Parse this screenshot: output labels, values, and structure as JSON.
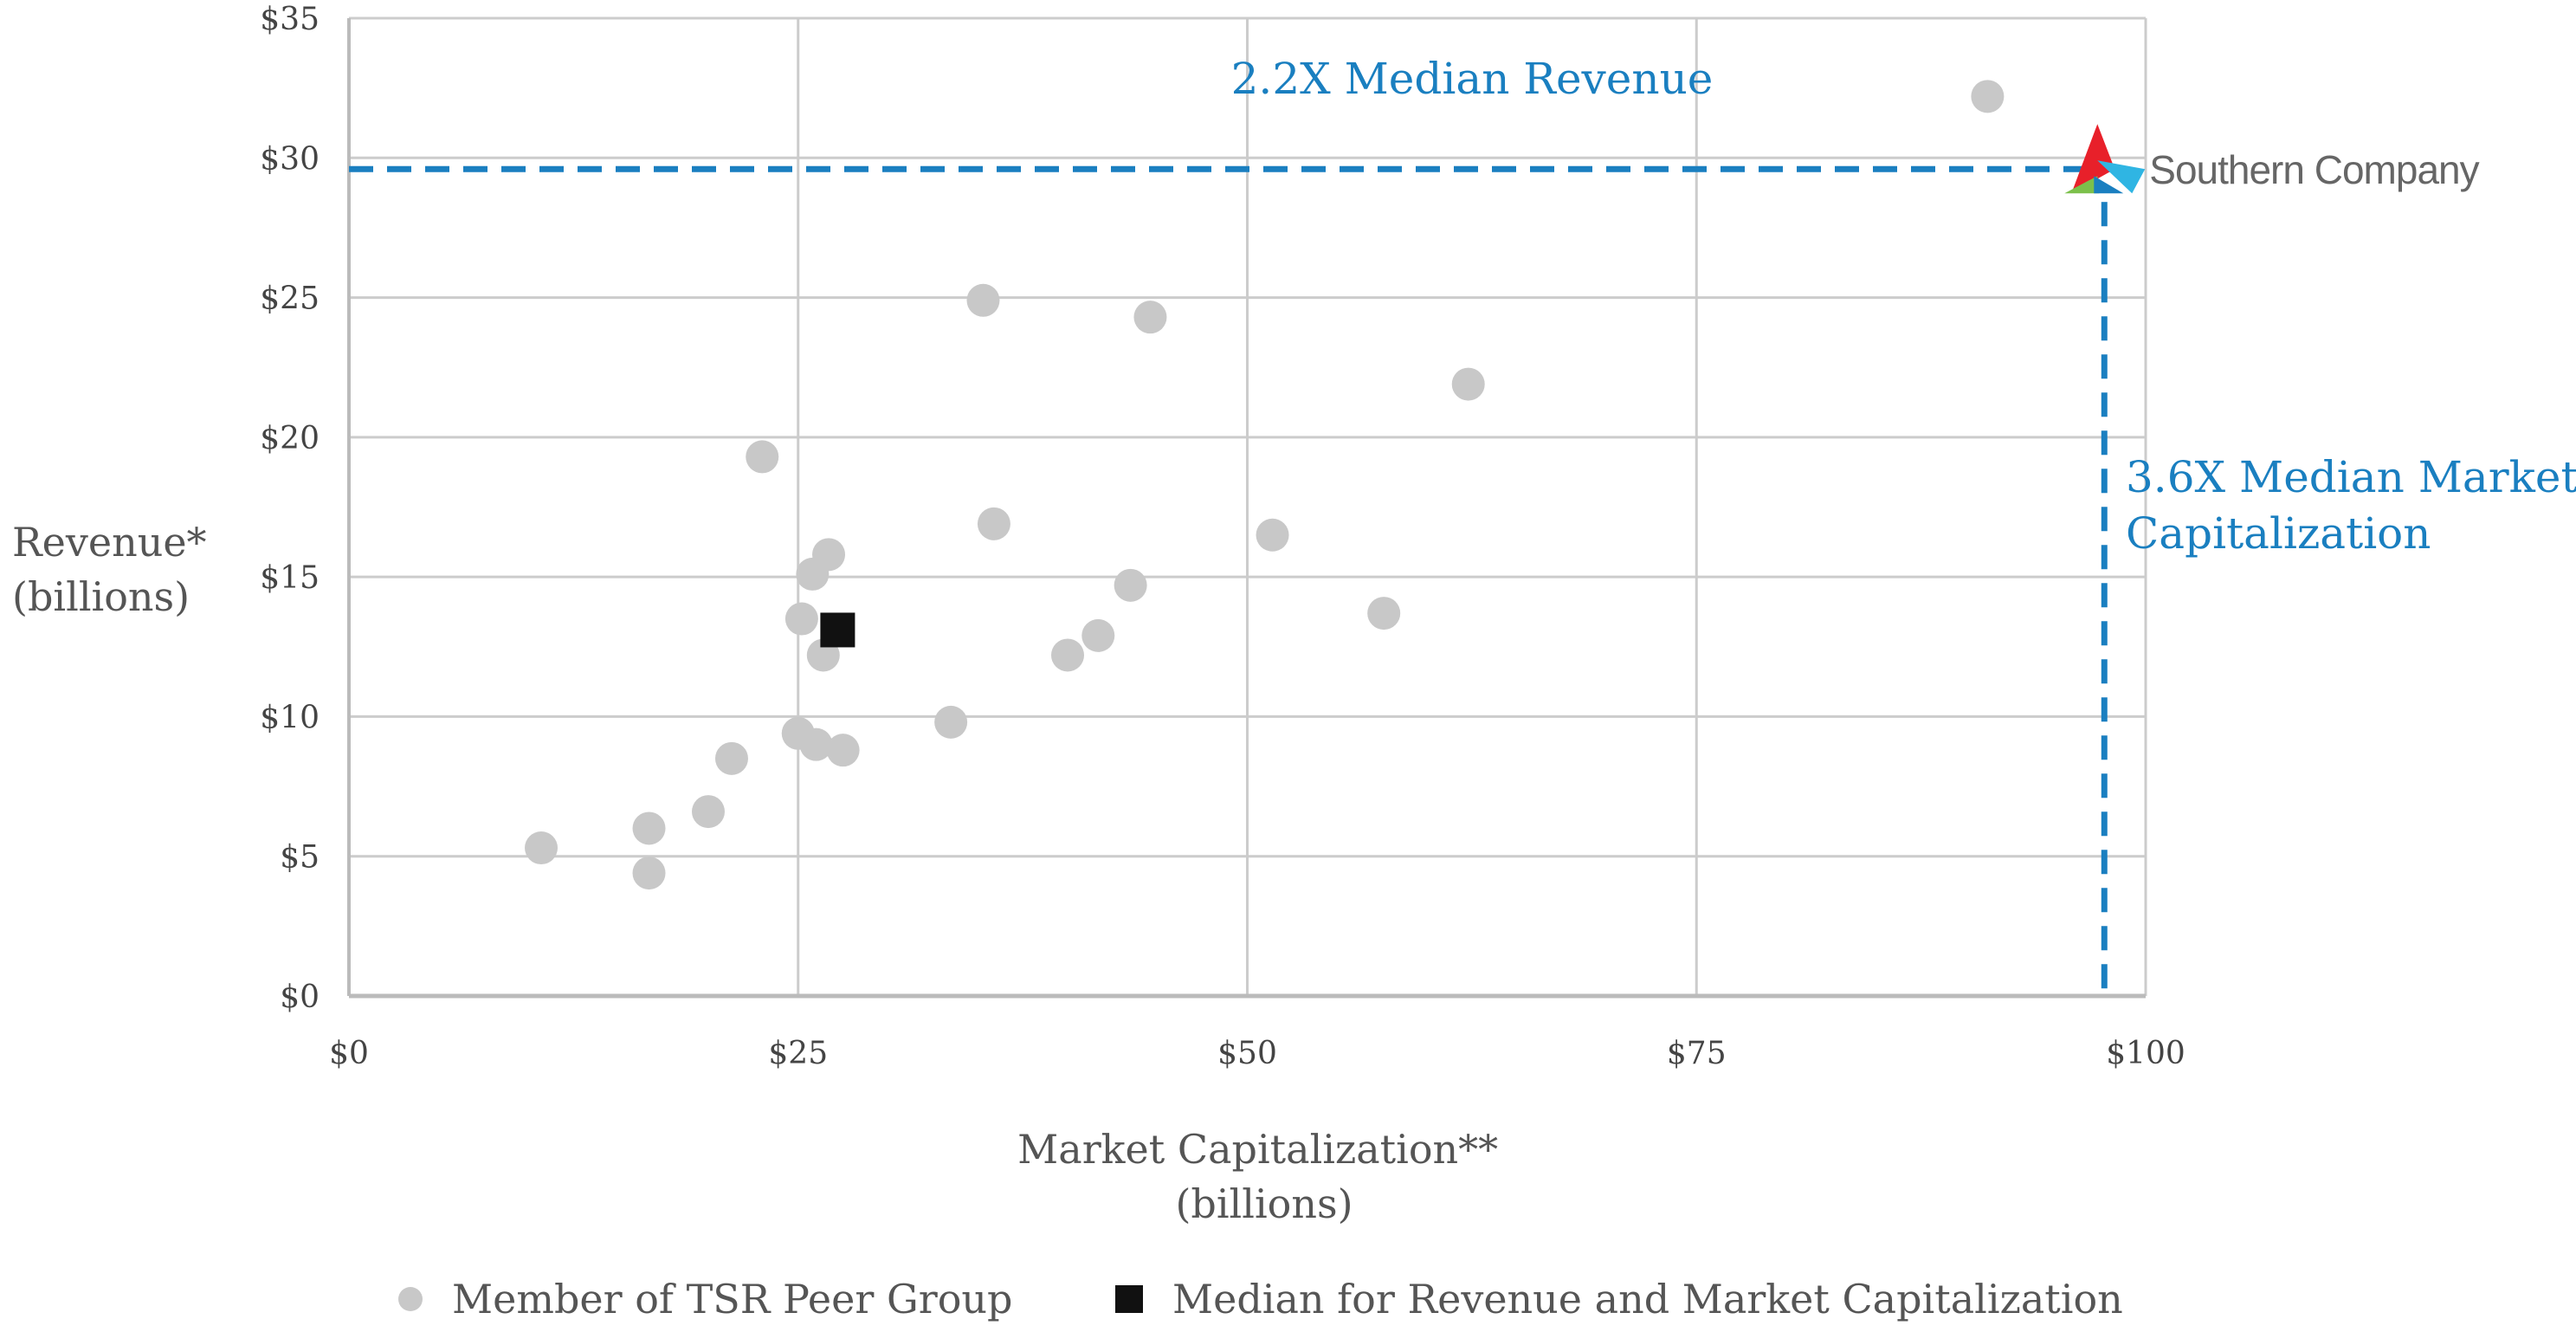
{
  "chart_data": {
    "type": "scatter",
    "xlabel": [
      "Market Capitalization**",
      "(billions)"
    ],
    "ylabel": [
      "Revenue*",
      "(billions)"
    ],
    "xlim": [
      0,
      100
    ],
    "ylim": [
      0,
      35
    ],
    "x_ticks": [
      0,
      25,
      50,
      75,
      100
    ],
    "x_tick_labels": [
      "$0",
      "$25",
      "$50",
      "$75",
      "$100"
    ],
    "y_ticks": [
      0,
      5,
      10,
      15,
      20,
      25,
      30,
      35
    ],
    "y_tick_labels": [
      "$0",
      "$5",
      "$10",
      "$15",
      "$20",
      "$25",
      "$30",
      "$35"
    ],
    "grid": true,
    "series": [
      {
        "name": "Member of TSR Peer Group",
        "marker": "circle",
        "color": "#c8c8c8",
        "points": [
          [
            10.7,
            5.3
          ],
          [
            16.7,
            6.0
          ],
          [
            16.7,
            4.4
          ],
          [
            20.0,
            6.6
          ],
          [
            21.3,
            8.5
          ],
          [
            23.0,
            19.3
          ],
          [
            25.0,
            9.4
          ],
          [
            25.2,
            13.5
          ],
          [
            25.8,
            15.1
          ],
          [
            26.0,
            9.0
          ],
          [
            26.4,
            12.2
          ],
          [
            26.7,
            15.8
          ],
          [
            27.5,
            8.8
          ],
          [
            33.5,
            9.8
          ],
          [
            35.3,
            24.9
          ],
          [
            35.9,
            16.9
          ],
          [
            40.0,
            12.2
          ],
          [
            41.7,
            12.9
          ],
          [
            43.5,
            14.7
          ],
          [
            44.6,
            24.3
          ],
          [
            51.4,
            16.5
          ],
          [
            57.6,
            13.7
          ],
          [
            62.3,
            21.9
          ],
          [
            91.2,
            32.2
          ]
        ]
      },
      {
        "name": "Median for Revenue and Market Capitalization",
        "marker": "square",
        "color": "#111111",
        "points": [
          [
            27.2,
            13.1
          ]
        ]
      }
    ],
    "highlight": {
      "name": "Southern Company",
      "x": 97.7,
      "y": 29.6,
      "line_color": "#1a7fc0"
    },
    "annotations": [
      {
        "id": "median_revenue",
        "text": [
          "2.2X Median Revenue"
        ]
      },
      {
        "id": "median_market_cap",
        "text": [
          "3.6X Median Market",
          "Capitalization"
        ]
      }
    ],
    "legend": {
      "placement": "bottom",
      "items": [
        "Member of TSR Peer Group",
        "Median for Revenue and Market Capitalization"
      ]
    }
  },
  "logo": {
    "text": "Southern Company",
    "colors": [
      "#e8202a",
      "#1a7fc0",
      "#2fb5e3",
      "#7cc04b"
    ]
  }
}
